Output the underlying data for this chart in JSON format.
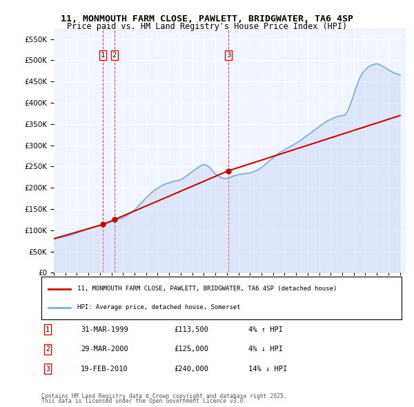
{
  "title": "11, MONMOUTH FARM CLOSE, PAWLETT, BRIDGWATER, TA6 4SP",
  "subtitle": "Price paid vs. HM Land Registry's House Price Index (HPI)",
  "ylabel_ticks": [
    "£0",
    "£50K",
    "£100K",
    "£150K",
    "£200K",
    "£250K",
    "£300K",
    "£350K",
    "£400K",
    "£450K",
    "£500K",
    "£550K"
  ],
  "ytick_values": [
    0,
    50000,
    100000,
    150000,
    200000,
    250000,
    300000,
    350000,
    400000,
    450000,
    500000,
    550000
  ],
  "ylim": [
    0,
    575000
  ],
  "xlim_start": 1995.0,
  "xlim_end": 2025.5,
  "legend_label_red": "11, MONMOUTH FARM CLOSE, PAWLETT, BRIDGWATER, TA6 4SP (detached house)",
  "legend_label_blue": "HPI: Average price, detached house, Somerset",
  "transactions": [
    {
      "num": 1,
      "date": "31-MAR-1999",
      "price": 113500,
      "pct": "4%",
      "dir": "↑",
      "x": 1999.25
    },
    {
      "num": 2,
      "date": "29-MAR-2000",
      "price": 125000,
      "pct": "4%",
      "dir": "↓",
      "x": 2000.25
    },
    {
      "num": 3,
      "date": "19-FEB-2010",
      "price": 240000,
      "pct": "14%",
      "dir": "↓",
      "x": 2010.13
    }
  ],
  "footnote1": "Contains HM Land Registry data © Crown copyright and database right 2025.",
  "footnote2": "This data is licensed under the Open Government Licence v3.0.",
  "hpi_color": "#aec6e8",
  "price_color": "#cc0000",
  "background_color": "#f0f4ff",
  "plot_bg": "#f0f4ff",
  "hpi_line_color": "#7bafd4",
  "hpi_x": [
    1995,
    1995.25,
    1995.5,
    1995.75,
    1996,
    1996.25,
    1996.5,
    1996.75,
    1997,
    1997.25,
    1997.5,
    1997.75,
    1998,
    1998.25,
    1998.5,
    1998.75,
    1999,
    1999.25,
    1999.5,
    1999.75,
    2000,
    2000.25,
    2000.5,
    2000.75,
    2001,
    2001.25,
    2001.5,
    2001.75,
    2002,
    2002.25,
    2002.5,
    2002.75,
    2003,
    2003.25,
    2003.5,
    2003.75,
    2004,
    2004.25,
    2004.5,
    2004.75,
    2005,
    2005.25,
    2005.5,
    2005.75,
    2006,
    2006.25,
    2006.5,
    2006.75,
    2007,
    2007.25,
    2007.5,
    2007.75,
    2008,
    2008.25,
    2008.5,
    2008.75,
    2009,
    2009.25,
    2009.5,
    2009.75,
    2010,
    2010.25,
    2010.5,
    2010.75,
    2011,
    2011.25,
    2011.5,
    2011.75,
    2012,
    2012.25,
    2012.5,
    2012.75,
    2013,
    2013.25,
    2013.5,
    2013.75,
    2014,
    2014.25,
    2014.5,
    2014.75,
    2015,
    2015.25,
    2015.5,
    2015.75,
    2016,
    2016.25,
    2016.5,
    2016.75,
    2017,
    2017.25,
    2017.5,
    2017.75,
    2018,
    2018.25,
    2018.5,
    2018.75,
    2019,
    2019.25,
    2019.5,
    2019.75,
    2020,
    2020.25,
    2020.5,
    2020.75,
    2021,
    2021.25,
    2021.5,
    2021.75,
    2022,
    2022.25,
    2022.5,
    2022.75,
    2023,
    2023.25,
    2023.5,
    2023.75,
    2024,
    2024.25,
    2024.5,
    2024.75,
    2025
  ],
  "hpi_y": [
    80000,
    81000,
    82500,
    84000,
    85500,
    87000,
    89000,
    91000,
    93500,
    96000,
    98500,
    101000,
    103000,
    105500,
    108000,
    110000,
    111500,
    113000,
    115500,
    118000,
    120000,
    122500,
    125000,
    127000,
    129000,
    133000,
    138000,
    143000,
    148000,
    155000,
    162000,
    169000,
    176000,
    183000,
    189000,
    195000,
    199000,
    203000,
    207000,
    210000,
    212000,
    214000,
    216000,
    217000,
    219000,
    223000,
    228000,
    233000,
    238000,
    243000,
    248000,
    252000,
    255000,
    253000,
    248000,
    240000,
    233000,
    228000,
    224000,
    222000,
    222000,
    224000,
    227000,
    229000,
    231000,
    232000,
    233000,
    234000,
    235000,
    237000,
    240000,
    243000,
    248000,
    253000,
    259000,
    265000,
    270000,
    276000,
    282000,
    286000,
    289000,
    293000,
    297000,
    301000,
    305000,
    309000,
    314000,
    319000,
    324000,
    329000,
    334000,
    339000,
    344000,
    349000,
    354000,
    358000,
    361000,
    364000,
    367000,
    369000,
    370000,
    372000,
    382000,
    400000,
    420000,
    440000,
    458000,
    470000,
    478000,
    484000,
    488000,
    491000,
    492000,
    490000,
    486000,
    482000,
    478000,
    474000,
    470000,
    468000,
    466000
  ],
  "price_x": [
    1995.0,
    1999.25,
    2000.25,
    2010.13,
    2025.0
  ],
  "price_y": [
    80000,
    113500,
    125000,
    240000,
    370000
  ]
}
